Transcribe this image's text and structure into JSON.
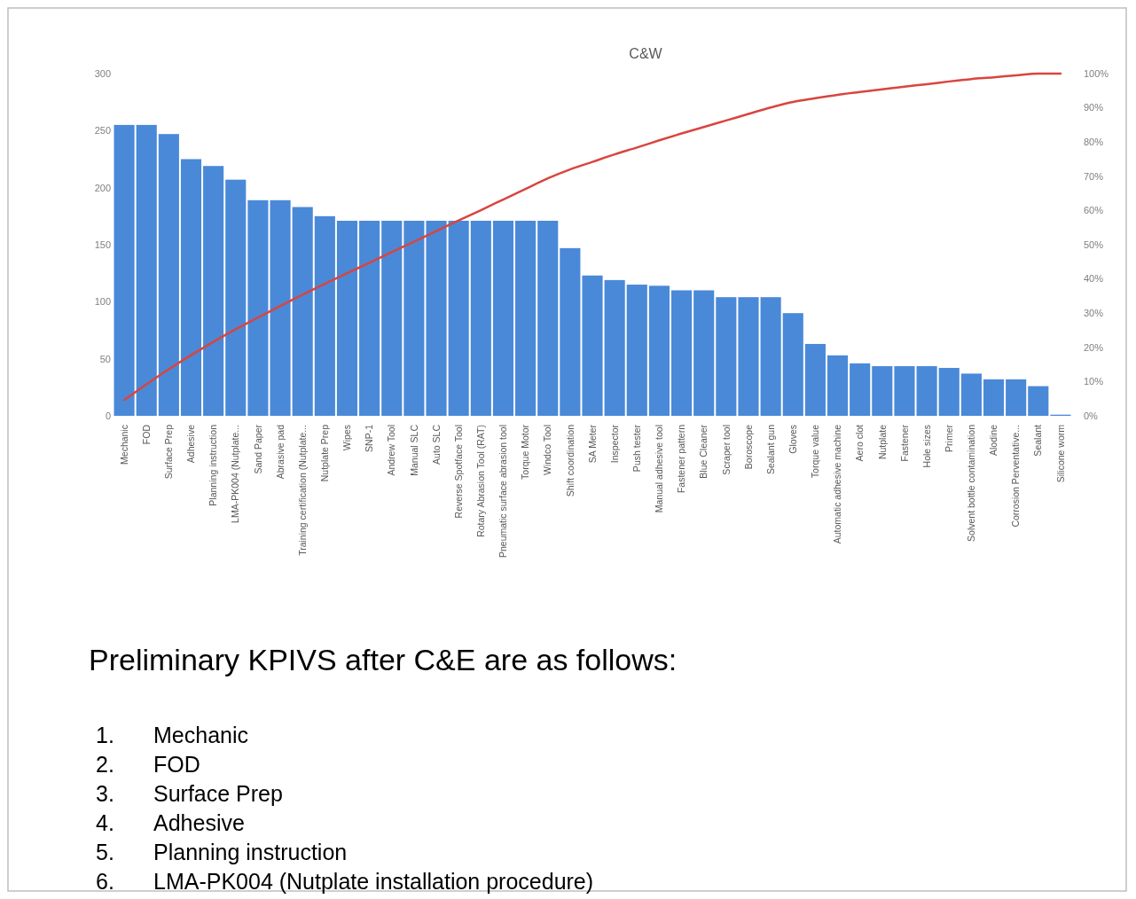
{
  "chart_data": {
    "type": "bar",
    "title": "C&W",
    "categories": [
      "Mechanic",
      "FOD",
      "Surface Prep",
      "Adhesive",
      "Planning instruction",
      "LMA-PK004 (Nutplate...",
      "Sand Paper",
      "Abrasive pad",
      "Training certification (Nutplate...",
      "Nutplate Prep",
      "Wipes",
      "SNP-1",
      "Andrew Tool",
      "Manual SLC",
      "Auto SLC",
      "Reverse Spotface Tool",
      "Rotary Abrasion Tool (RAT)",
      "Pneumatic surface abrasion tool",
      "Torque Motor",
      "Windco Tool",
      "Shift coordination",
      "SA Meter",
      "Inspector",
      "Push tester",
      "Manual adhesive tool",
      "Fastener pattern",
      "Blue Cleaner",
      "Scraper tool",
      "Boroscope",
      "Sealant gun",
      "Gloves",
      "Torque value",
      "Automatic adhesive machine",
      "Aero clot",
      "Nutplate",
      "Fastener",
      "Hole sizes",
      "Primer",
      "Solvent bottle contamination",
      "Alodine",
      "Corrosion Perventative...",
      "Sealant",
      "Silicone worm"
    ],
    "series": [
      {
        "color": "#4a89d8",
        "values": [
          255,
          255,
          247,
          225,
          219,
          207,
          189,
          189,
          183,
          175,
          171,
          171,
          171,
          171,
          171,
          171,
          171,
          171,
          171,
          171,
          147,
          123,
          119,
          115,
          114,
          110,
          110,
          104,
          104,
          104,
          90,
          63,
          53,
          46,
          43.5,
          43.5,
          43.5,
          42,
          37,
          32,
          32,
          26,
          1
        ]
      },
      {
        "type": "line",
        "axis": "y2",
        "color": "#d9453f",
        "values": [
          4.6,
          9.2,
          13.6,
          17.7,
          21.6,
          25.3,
          28.7,
          32.1,
          35.4,
          38.6,
          41.7,
          44.7,
          47.8,
          50.9,
          54.0,
          57.1,
          60.1,
          63.2,
          66.3,
          69.4,
          72.0,
          74.2,
          76.4,
          78.4,
          80.5,
          82.5,
          84.4,
          86.3,
          88.2,
          90.1,
          91.7,
          92.8,
          93.8,
          94.6,
          95.4,
          96.2,
          96.9,
          97.7,
          98.4,
          98.9,
          99.5,
          100,
          100
        ]
      }
    ],
    "ylim": [
      0,
      300
    ],
    "yticks": [
      0,
      50,
      100,
      150,
      200,
      250,
      300
    ],
    "y2lim": [
      0,
      100
    ],
    "y2ticks": [
      {
        "value": 0,
        "label": "0%"
      },
      {
        "value": 10,
        "label": "10%"
      },
      {
        "value": 20,
        "label": "20%"
      },
      {
        "value": 30,
        "label": "30%"
      },
      {
        "value": 40,
        "label": "40%"
      },
      {
        "value": 50,
        "label": "50%"
      },
      {
        "value": 60,
        "label": "60%"
      },
      {
        "value": 70,
        "label": "70%"
      },
      {
        "value": 80,
        "label": "80%"
      },
      {
        "value": 90,
        "label": "90%"
      },
      {
        "value": 100,
        "label": "100%"
      }
    ],
    "annotations": [
      "Preliminary KPIVS after C&E are as follows:",
      "1. Mechanic",
      "2. FOD",
      "3. Surface Prep",
      "4. Adhesive",
      "5. Planning instruction",
      "6. LMA-PK004 (Nutplate installation procedure)"
    ]
  }
}
